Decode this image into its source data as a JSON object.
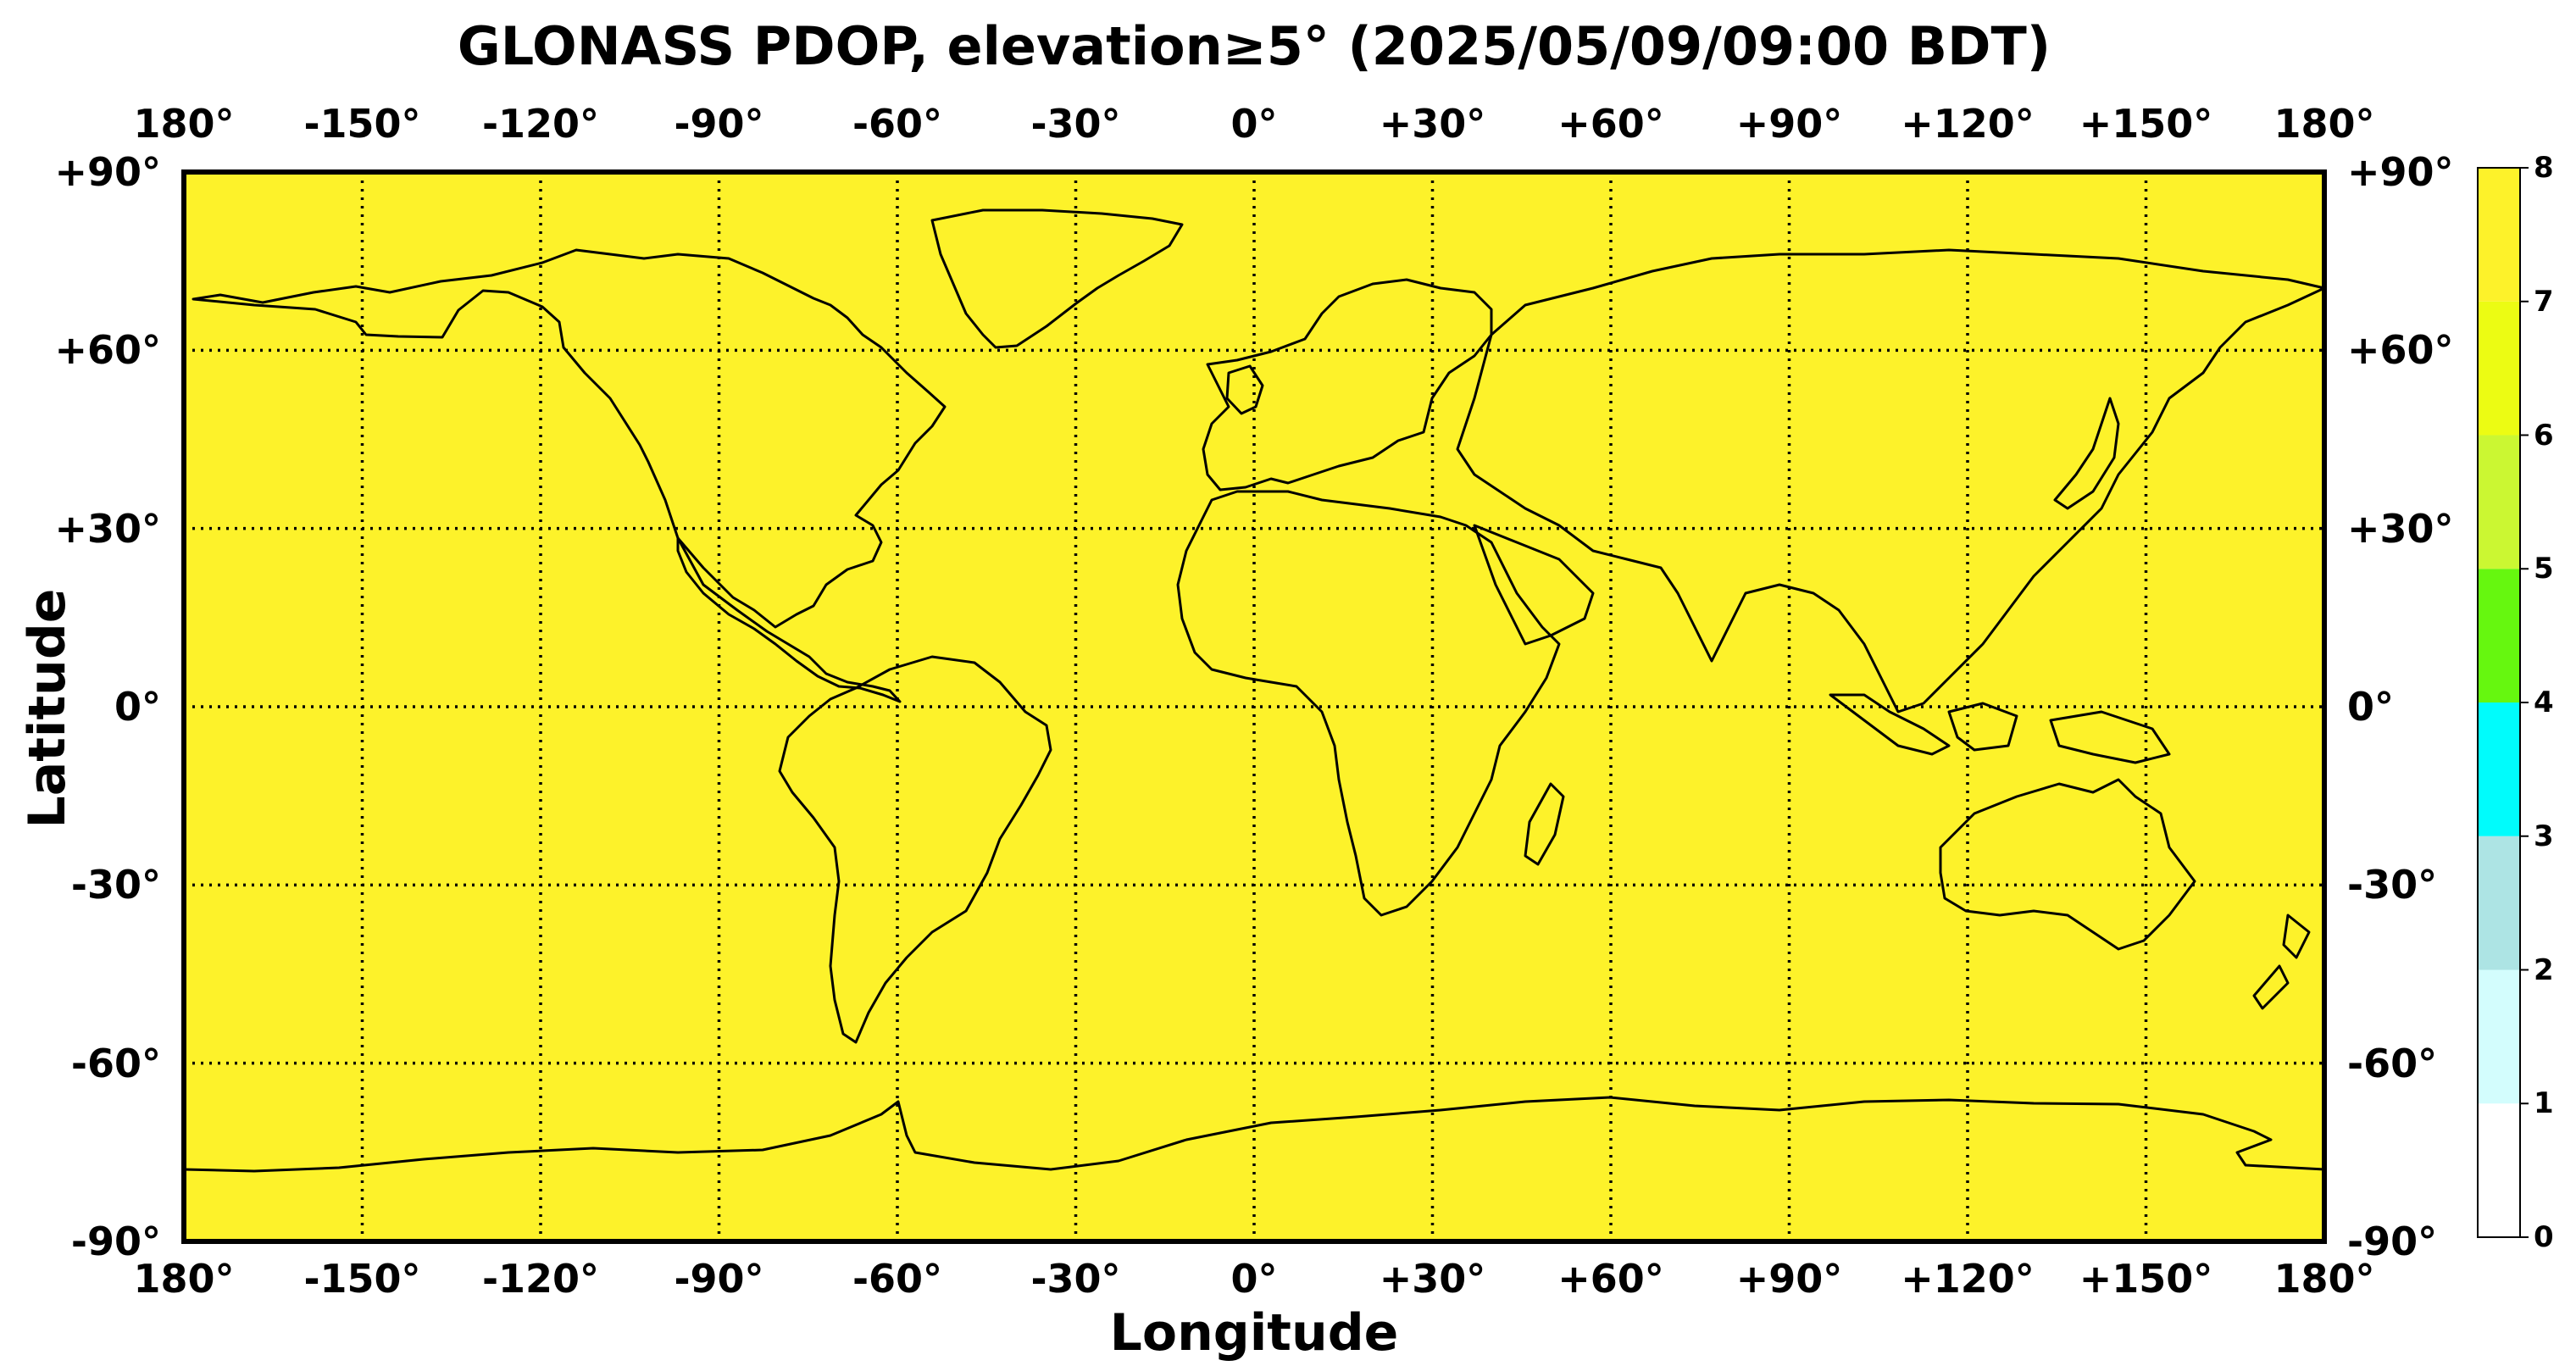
{
  "chart_data": {
    "type": "heatmap",
    "title": "GLONASS PDOP, elevation≥5° (2025/05/09/09:00 BDT)",
    "xlabel": "Longitude",
    "ylabel": "Latitude",
    "xlim": [
      -180,
      180
    ],
    "ylim": [
      -90,
      90
    ],
    "x_ticks": [
      -180,
      -150,
      -120,
      -90,
      -60,
      -30,
      0,
      30,
      60,
      90,
      120,
      150,
      180
    ],
    "x_tick_labels": [
      "180°",
      "-150°",
      "-120°",
      "-90°",
      "-60°",
      "-30°",
      "0°",
      "+30°",
      "+60°",
      "+90°",
      "+120°",
      "+150°",
      "180°"
    ],
    "y_ticks": [
      90,
      60,
      30,
      0,
      -30,
      -60,
      -90
    ],
    "y_tick_labels": [
      "+90°",
      "+60°",
      "+30°",
      "0°",
      "-30°",
      "-60°",
      "-90°"
    ],
    "grid": true,
    "grid_style": "dotted",
    "field_value_estimate": "7-8 (uniform across the map)",
    "field_color": "#fdf22a",
    "colorbar": {
      "min": 0,
      "max": 8,
      "ticks": [
        0,
        1,
        2,
        3,
        4,
        5,
        6,
        7,
        8
      ],
      "bins": [
        {
          "from": 0,
          "to": 1,
          "color": "#ffffff"
        },
        {
          "from": 1,
          "to": 2,
          "color": "#d3fdfd"
        },
        {
          "from": 2,
          "to": 3,
          "color": "#ade4e4"
        },
        {
          "from": 3,
          "to": 4,
          "color": "#00fcfc"
        },
        {
          "from": 4,
          "to": 5,
          "color": "#66f70f"
        },
        {
          "from": 5,
          "to": 6,
          "color": "#cbf732"
        },
        {
          "from": 6,
          "to": 7,
          "color": "#ecfc13"
        },
        {
          "from": 7,
          "to": 8,
          "color": "#fdf22a"
        }
      ]
    }
  }
}
